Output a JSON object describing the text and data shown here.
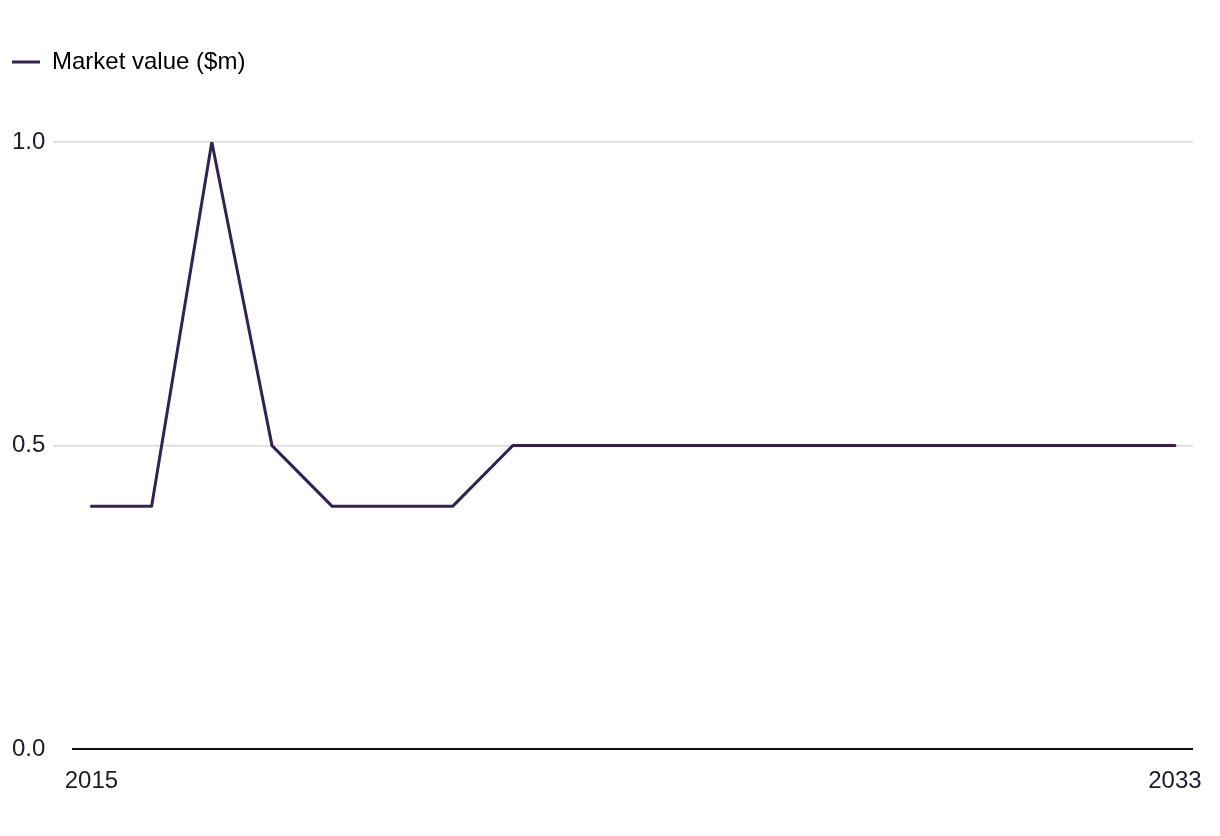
{
  "chart_data": {
    "type": "line",
    "x": [
      2015,
      2016,
      2017,
      2018,
      2019,
      2020,
      2021,
      2022,
      2023,
      2024,
      2025,
      2026,
      2027,
      2028,
      2029,
      2030,
      2031,
      2032,
      2033
    ],
    "series": [
      {
        "name": "Market value ($m)",
        "color": "#33224f",
        "values": [
          0.4,
          0.4,
          1.0,
          0.5,
          0.4,
          0.4,
          0.4,
          0.5,
          0.5,
          0.5,
          0.5,
          0.5,
          0.5,
          0.5,
          0.5,
          0.5,
          0.5,
          0.5,
          0.5
        ]
      }
    ],
    "xlim": [
      2014.7,
      2033.3
    ],
    "xticks": [
      2015,
      2033
    ],
    "ylim": [
      0,
      1
    ],
    "yticks": [
      {
        "value": 0,
        "label": "0.0"
      },
      0.5,
      {
        "value": 1,
        "label": "1.0"
      }
    ],
    "grid": "y",
    "legend": "top left",
    "marker": "none",
    "line_style": "solid"
  }
}
